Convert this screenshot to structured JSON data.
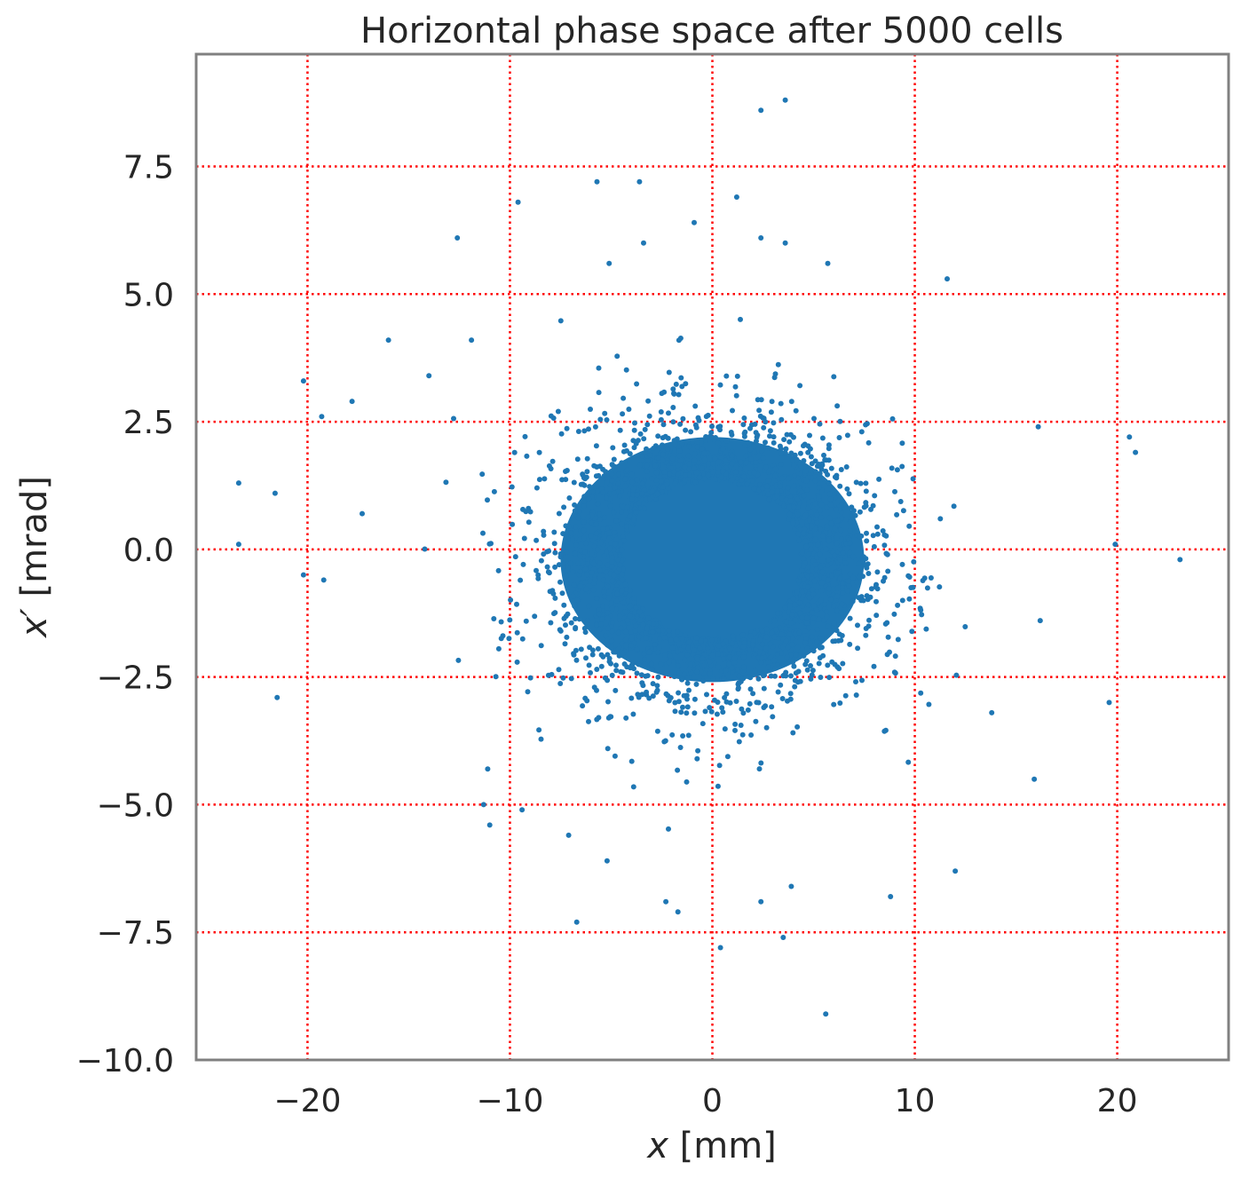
{
  "chart_data": {
    "type": "scatter",
    "title": "Horizontal phase space after 5000 cells",
    "xlabel_var": "x",
    "xlabel_unit": " [mm]",
    "ylabel_var": "x′",
    "ylabel_unit": " [mrad]",
    "xlim": [
      -25.5,
      25.5
    ],
    "ylim": [
      -10.0,
      9.7
    ],
    "xticks": [
      -20,
      -10,
      0,
      10,
      20
    ],
    "xtick_labels": [
      "−20",
      "−10",
      "0",
      "10",
      "20"
    ],
    "yticks": [
      -10.0,
      -7.5,
      -5.0,
      -2.5,
      0.0,
      2.5,
      5.0,
      7.5
    ],
    "ytick_labels": [
      "−10.0",
      "−7.5",
      "−5.0",
      "−2.5",
      "0.0",
      "2.5",
      "5.0",
      "7.5"
    ],
    "grid": true,
    "grid_style": "dotted",
    "grid_color": "#ff0000",
    "frame_color": "#808080",
    "point_color": "#1f77b4",
    "core": {
      "description_points_count": 0,
      "x_sigma": 3.6,
      "y_sigma": 1.25,
      "x_center": 0.0,
      "y_center": -0.2,
      "x_halfwidth": 7.5,
      "y_halfwidth": 2.4
    },
    "series": [
      {
        "x": [
          3.6,
          2.4,
          -5.7,
          -3.6,
          -9.6,
          1.2,
          -12.6,
          -0.9,
          2.4,
          3.6,
          -3.4,
          -5.1,
          5.7,
          11.6,
          -16.0,
          -11.9,
          -20.2,
          -19.3,
          -17.8,
          -14.0,
          -23.4,
          -21.6,
          -23.4,
          -17.3,
          -20.2,
          -19.2,
          -21.5,
          20.6,
          20.9,
          16.1,
          23.1,
          19.9,
          19.6,
          15.9,
          13.8,
          12.0,
          8.8,
          3.5,
          5.6,
          0.4,
          -6.7,
          -2.3,
          -1.7,
          -11.1,
          -11.3,
          -11.0,
          -9.4,
          -7.1,
          -5.2,
          2.4,
          3.9
        ],
        "y": [
          8.8,
          8.6,
          7.2,
          7.2,
          6.8,
          6.9,
          6.1,
          6.4,
          6.1,
          6.0,
          6.0,
          5.6,
          5.6,
          5.3,
          4.1,
          4.1,
          3.3,
          2.6,
          2.9,
          3.4,
          1.3,
          1.1,
          0.1,
          0.7,
          -0.5,
          -0.6,
          -2.9,
          2.2,
          1.9,
          2.4,
          -0.2,
          0.1,
          -3.0,
          -4.5,
          -3.2,
          -6.3,
          -6.8,
          -7.6,
          -9.1,
          -7.8,
          -7.3,
          -6.9,
          -7.1,
          -4.3,
          -5.0,
          -5.4,
          -5.1,
          -5.6,
          -6.1,
          -6.9,
          -6.6
        ]
      }
    ]
  }
}
